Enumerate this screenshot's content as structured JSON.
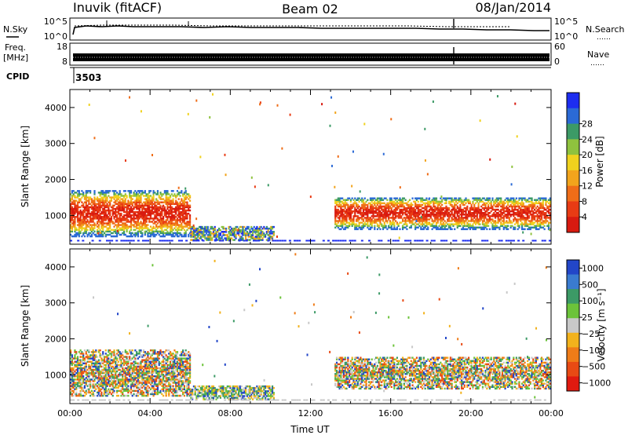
{
  "header": {
    "title_left": "Inuvik (fitACF)",
    "title_center": "Beam 02",
    "title_right": "08/Jan/2014"
  },
  "strip_nsky": {
    "left_label": "N.Sky",
    "right_label": "N.Search",
    "right_legend_line": "……",
    "ticks_left": [
      "10^5",
      "10^0"
    ],
    "ticks_right": [
      "10^5",
      "10^0"
    ]
  },
  "strip_freq": {
    "left_label_line1": "Freq.",
    "left_label_line2": "[MHz]",
    "right_label": "Nave",
    "right_legend_line": "……",
    "ticks_left": [
      "18",
      "8"
    ],
    "ticks_right": [
      "60",
      "0"
    ]
  },
  "strip_cpid": {
    "label": "CPID",
    "value": "3503"
  },
  "chart_data": [
    {
      "type": "heatmap",
      "name": "power",
      "ylabel": "Slant Range [km]",
      "xlabel": "",
      "yticks": [
        "1000",
        "2000",
        "3000",
        "4000"
      ],
      "ylim": [
        200,
        4500
      ],
      "xlim_hours": [
        0,
        24
      ],
      "colorbar": {
        "label": "Power [dB]",
        "ticks": [
          "4",
          "8",
          "12",
          "16",
          "20",
          "24",
          "28"
        ],
        "colors": [
          "#1d2df0",
          "#2b6ad6",
          "#3c9a66",
          "#8fc23e",
          "#f0d21e",
          "#f2a41c",
          "#ef6d18",
          "#e83b14",
          "#d81a10"
        ]
      },
      "echo_regions": [
        {
          "t0": 0.0,
          "t1": 6.0,
          "r0": 400,
          "r1": 1700,
          "level": "high"
        },
        {
          "t0": 6.0,
          "t1": 10.2,
          "r0": 300,
          "r1": 700,
          "level": "low"
        },
        {
          "t0": 13.2,
          "t1": 24.0,
          "r0": 600,
          "r1": 1500,
          "level": "high"
        }
      ]
    },
    {
      "type": "heatmap",
      "name": "velocity",
      "ylabel": "Slant Range [km]",
      "xlabel": "Time UT",
      "xticks": [
        "00:00",
        "04:00",
        "08:00",
        "12:00",
        "16:00",
        "20:00",
        "00:00"
      ],
      "yticks": [
        "1000",
        "2000",
        "3000",
        "4000"
      ],
      "ylim": [
        200,
        4500
      ],
      "xlim_hours": [
        0,
        24
      ],
      "colorbar": {
        "label": "Velocity [m s⁻¹]",
        "ticks": [
          "1000",
          "500",
          "100",
          "25",
          "−25",
          "−100",
          "−500",
          "−1000"
        ],
        "colors": [
          "#2246c8",
          "#3a7bd0",
          "#3c9a66",
          "#6cc33a",
          "#c8c8c8",
          "#f2b21c",
          "#ef7c18",
          "#e84a14",
          "#e01a10"
        ]
      },
      "echo_regions": [
        {
          "t0": 0.0,
          "t1": 6.0,
          "r0": 400,
          "r1": 1700,
          "level": "negative"
        },
        {
          "t0": 6.0,
          "t1": 10.2,
          "r0": 300,
          "r1": 700,
          "level": "mixed"
        },
        {
          "t0": 13.2,
          "t1": 24.0,
          "r0": 600,
          "r1": 1500,
          "level": "negative"
        }
      ]
    }
  ]
}
